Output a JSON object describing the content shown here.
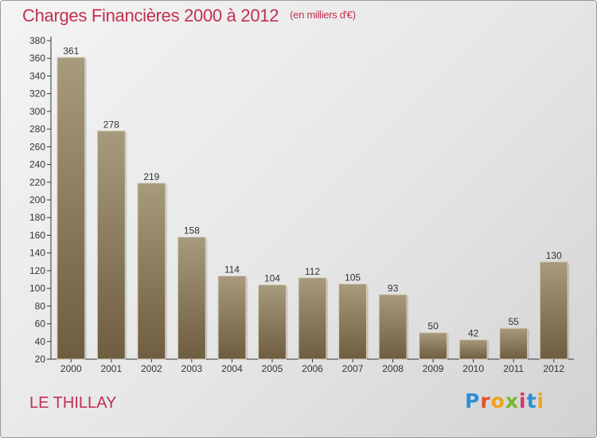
{
  "header": {
    "title": "Charges Financières 2000 à 2012",
    "unit": "(en milliers d'€)"
  },
  "footer": {
    "commune": "LE THILLAY",
    "logo": "Proxiti"
  },
  "colors": {
    "title": "#c0304f",
    "bar_light": "#a89a7c",
    "bar_dark": "#6e5d40"
  },
  "chart_data": {
    "type": "bar",
    "title": "Charges Financières 2000 à 2012",
    "subtitle": "(en milliers d'€)",
    "xlabel": "",
    "ylabel": "",
    "categories": [
      "2000",
      "2001",
      "2002",
      "2003",
      "2004",
      "2005",
      "2006",
      "2007",
      "2008",
      "2009",
      "2010",
      "2011",
      "2012"
    ],
    "values": [
      361,
      278,
      219,
      158,
      114,
      104,
      112,
      105,
      93,
      50,
      42,
      55,
      130
    ],
    "ylim": [
      20,
      380
    ],
    "yticks": [
      20,
      40,
      60,
      80,
      100,
      120,
      140,
      160,
      180,
      200,
      220,
      240,
      260,
      280,
      300,
      320,
      340,
      360,
      380
    ],
    "grid": false,
    "data_labels": true
  }
}
